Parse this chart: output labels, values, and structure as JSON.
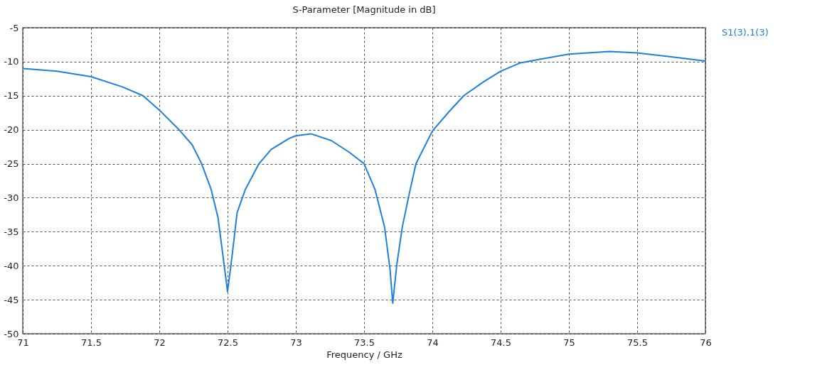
{
  "chart_data": {
    "type": "line",
    "title": "S-Parameter [Magnitude in dB]",
    "xlabel": "Frequency / GHz",
    "xlim": [
      71,
      76
    ],
    "xticks": [
      71,
      71.5,
      72,
      72.5,
      73,
      73.5,
      74,
      74.5,
      75,
      75.5,
      76
    ],
    "ylim": [
      -50,
      -5
    ],
    "yticks": [
      -50,
      -45,
      -40,
      -35,
      -30,
      -25,
      -20,
      -15,
      -10,
      -5
    ],
    "grid": true,
    "legend": "top right",
    "line_style": "solid",
    "series": [
      {
        "name": "S1(3),1(3)",
        "color": "#1f80db",
        "x": [
          71,
          71.25,
          71.5,
          71.73,
          71.88,
          72,
          72.14,
          72.24,
          72.31,
          72.38,
          72.43,
          72.47,
          72.5,
          72.53,
          72.57,
          72.63,
          72.73,
          72.82,
          72.95,
          73,
          73.11,
          73.26,
          73.39,
          73.5,
          73.58,
          73.65,
          73.69,
          73.71,
          73.74,
          73.78,
          73.83,
          73.88,
          74,
          74.12,
          74.23,
          74.38,
          74.5,
          74.64,
          74.8,
          75,
          75.3,
          75.5,
          75.76,
          76
        ],
        "values": [
          -11,
          -11.4,
          -12.2,
          -13.7,
          -15,
          -17.1,
          -19.9,
          -22.2,
          -25,
          -28.8,
          -32.9,
          -39.1,
          -43.8,
          -39.1,
          -32.2,
          -28.8,
          -25,
          -22.9,
          -21.3,
          -20.9,
          -20.6,
          -21.6,
          -23.3,
          -25,
          -28.8,
          -34.3,
          -40.5,
          -45.5,
          -39.8,
          -34.3,
          -29.5,
          -25,
          -20.2,
          -17.4,
          -15,
          -12.9,
          -11.4,
          -10.2,
          -9.6,
          -8.9,
          -8.5,
          -8.7,
          -9.3,
          -9.9
        ]
      }
    ]
  }
}
